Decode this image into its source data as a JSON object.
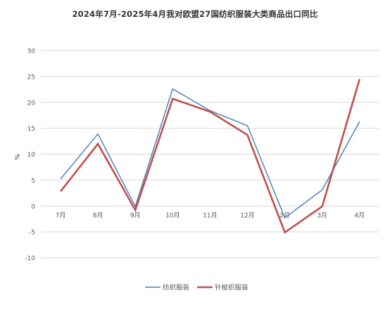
{
  "chart_data": {
    "type": "line",
    "title": "2024年7月-2025年4月我对欧盟27国纺织服装大类商品出口同比",
    "xlabel": "",
    "ylabel": "%",
    "categories": [
      "7月",
      "8月",
      "9月",
      "10月",
      "11月",
      "12月",
      "2月",
      "3月",
      "4月"
    ],
    "ylim": [
      -10,
      30
    ],
    "yticks": [
      -10,
      -5,
      0,
      5,
      10,
      15,
      20,
      25,
      30
    ],
    "grid": true,
    "legend_position": "bottom",
    "series": [
      {
        "name": "纺织服装",
        "color": "#4F81BD",
        "values": [
          5.2,
          13.9,
          -0.1,
          22.6,
          18.4,
          15.5,
          -2.3,
          3.1,
          16.3
        ]
      },
      {
        "name": "针梭织服装",
        "color": "#C0504D",
        "values": [
          2.8,
          12.0,
          -0.8,
          20.7,
          18.2,
          13.7,
          -5.1,
          -0.1,
          24.5
        ]
      }
    ]
  }
}
